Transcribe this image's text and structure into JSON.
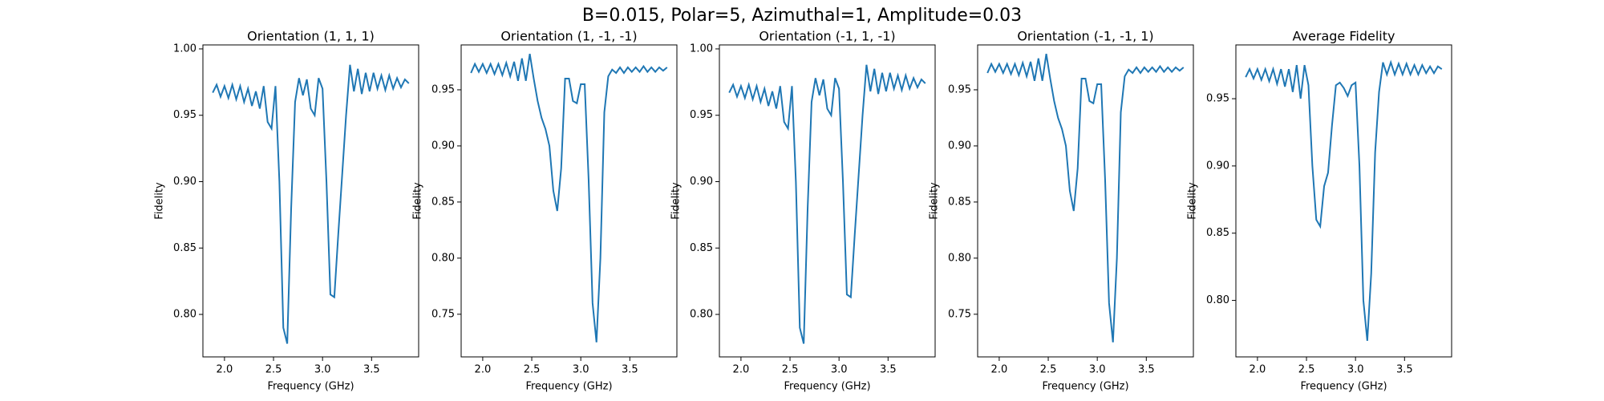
{
  "title": "B=0.015, Polar=5, Azimuthal=1, Amplitude=0.03",
  "chart_data": [
    {
      "type": "line",
      "title": "Orientation (1, 1, 1)",
      "xlabel": "Frequency (GHz)",
      "ylabel": "Fidelity",
      "color": "#1f77b4",
      "x": [
        1.88,
        1.92,
        1.96,
        2.0,
        2.04,
        2.08,
        2.12,
        2.16,
        2.2,
        2.24,
        2.28,
        2.32,
        2.36,
        2.4,
        2.44,
        2.48,
        2.52,
        2.56,
        2.6,
        2.64,
        2.68,
        2.72,
        2.76,
        2.8,
        2.84,
        2.88,
        2.92,
        2.96,
        3.0,
        3.04,
        3.08,
        3.12,
        3.16,
        3.2,
        3.24,
        3.28,
        3.32,
        3.36,
        3.4,
        3.44,
        3.48,
        3.52,
        3.56,
        3.6,
        3.64,
        3.68,
        3.72,
        3.76,
        3.8,
        3.84,
        3.88
      ],
      "values": [
        0.967,
        0.973,
        0.964,
        0.972,
        0.963,
        0.973,
        0.962,
        0.972,
        0.96,
        0.97,
        0.957,
        0.968,
        0.955,
        0.972,
        0.945,
        0.94,
        0.972,
        0.9,
        0.79,
        0.778,
        0.88,
        0.96,
        0.978,
        0.965,
        0.977,
        0.955,
        0.95,
        0.978,
        0.97,
        0.9,
        0.815,
        0.813,
        0.86,
        0.905,
        0.95,
        0.988,
        0.968,
        0.985,
        0.966,
        0.982,
        0.968,
        0.982,
        0.97,
        0.98,
        0.969,
        0.98,
        0.97,
        0.978,
        0.971,
        0.977,
        0.974
      ],
      "xlim": [
        1.78,
        3.98
      ],
      "ylim": [
        0.768,
        1.003
      ],
      "xticks": [
        {
          "value": 2,
          "label": "2.0"
        },
        2.5,
        {
          "value": 3,
          "label": "3.0"
        },
        3.5
      ],
      "yticks": [
        {
          "value": 0.8,
          "label": "0.80"
        },
        0.85,
        {
          "value": 0.9,
          "label": "0.90"
        },
        0.95,
        {
          "value": 1,
          "label": "1.00"
        }
      ]
    },
    {
      "type": "line",
      "title": "Orientation (1, -1, -1)",
      "xlabel": "Frequency (GHz)",
      "ylabel": "Fidelity",
      "color": "#1f77b4",
      "x": [
        1.88,
        1.92,
        1.96,
        2.0,
        2.04,
        2.08,
        2.12,
        2.16,
        2.2,
        2.24,
        2.28,
        2.32,
        2.36,
        2.4,
        2.44,
        2.48,
        2.52,
        2.56,
        2.6,
        2.64,
        2.68,
        2.72,
        2.76,
        2.8,
        2.84,
        2.88,
        2.92,
        2.96,
        3.0,
        3.04,
        3.08,
        3.12,
        3.16,
        3.2,
        3.24,
        3.28,
        3.32,
        3.36,
        3.4,
        3.44,
        3.48,
        3.52,
        3.56,
        3.6,
        3.64,
        3.68,
        3.72,
        3.76,
        3.8,
        3.84,
        3.88
      ],
      "values": [
        0.965,
        0.973,
        0.966,
        0.973,
        0.965,
        0.973,
        0.964,
        0.973,
        0.963,
        0.974,
        0.962,
        0.975,
        0.958,
        0.978,
        0.958,
        0.982,
        0.96,
        0.94,
        0.925,
        0.915,
        0.9,
        0.86,
        0.842,
        0.88,
        0.96,
        0.96,
        0.94,
        0.938,
        0.955,
        0.955,
        0.87,
        0.76,
        0.725,
        0.8,
        0.93,
        0.962,
        0.968,
        0.965,
        0.97,
        0.965,
        0.97,
        0.966,
        0.97,
        0.966,
        0.971,
        0.966,
        0.97,
        0.966,
        0.97,
        0.967,
        0.97
      ],
      "xlim": [
        1.78,
        3.98
      ],
      "ylim": [
        0.712,
        0.99
      ],
      "xticks": [
        {
          "value": 2,
          "label": "2.0"
        },
        2.5,
        {
          "value": 3,
          "label": "3.0"
        },
        3.5
      ],
      "yticks": [
        0.75,
        {
          "value": 0.8,
          "label": "0.80"
        },
        0.85,
        {
          "value": 0.9,
          "label": "0.90"
        },
        0.95
      ]
    },
    {
      "type": "line",
      "title": "Orientation (-1, 1, -1)",
      "xlabel": "Frequency (GHz)",
      "ylabel": "Fidelity",
      "color": "#1f77b4",
      "x": [
        1.88,
        1.92,
        1.96,
        2.0,
        2.04,
        2.08,
        2.12,
        2.16,
        2.2,
        2.24,
        2.28,
        2.32,
        2.36,
        2.4,
        2.44,
        2.48,
        2.52,
        2.56,
        2.6,
        2.64,
        2.68,
        2.72,
        2.76,
        2.8,
        2.84,
        2.88,
        2.92,
        2.96,
        3.0,
        3.04,
        3.08,
        3.12,
        3.16,
        3.2,
        3.24,
        3.28,
        3.32,
        3.36,
        3.4,
        3.44,
        3.48,
        3.52,
        3.56,
        3.6,
        3.64,
        3.68,
        3.72,
        3.76,
        3.8,
        3.84,
        3.88
      ],
      "values": [
        0.967,
        0.973,
        0.964,
        0.972,
        0.963,
        0.973,
        0.962,
        0.972,
        0.96,
        0.97,
        0.957,
        0.968,
        0.955,
        0.972,
        0.945,
        0.94,
        0.972,
        0.9,
        0.79,
        0.778,
        0.88,
        0.96,
        0.978,
        0.965,
        0.977,
        0.955,
        0.95,
        0.978,
        0.97,
        0.9,
        0.815,
        0.813,
        0.86,
        0.905,
        0.95,
        0.988,
        0.968,
        0.985,
        0.966,
        0.982,
        0.968,
        0.982,
        0.97,
        0.98,
        0.969,
        0.98,
        0.97,
        0.978,
        0.971,
        0.977,
        0.974
      ],
      "xlim": [
        1.78,
        3.98
      ],
      "ylim": [
        0.768,
        1.003
      ],
      "xticks": [
        {
          "value": 2,
          "label": "2.0"
        },
        2.5,
        {
          "value": 3,
          "label": "3.0"
        },
        3.5
      ],
      "yticks": [
        {
          "value": 0.8,
          "label": "0.80"
        },
        0.85,
        {
          "value": 0.9,
          "label": "0.90"
        },
        0.95,
        {
          "value": 1,
          "label": "1.00"
        }
      ]
    },
    {
      "type": "line",
      "title": "Orientation (-1, -1, 1)",
      "xlabel": "Frequency (GHz)",
      "ylabel": "Fidelity",
      "color": "#1f77b4",
      "x": [
        1.88,
        1.92,
        1.96,
        2.0,
        2.04,
        2.08,
        2.12,
        2.16,
        2.2,
        2.24,
        2.28,
        2.32,
        2.36,
        2.4,
        2.44,
        2.48,
        2.52,
        2.56,
        2.6,
        2.64,
        2.68,
        2.72,
        2.76,
        2.8,
        2.84,
        2.88,
        2.92,
        2.96,
        3.0,
        3.04,
        3.08,
        3.12,
        3.16,
        3.2,
        3.24,
        3.28,
        3.32,
        3.36,
        3.4,
        3.44,
        3.48,
        3.52,
        3.56,
        3.6,
        3.64,
        3.68,
        3.72,
        3.76,
        3.8,
        3.84,
        3.88
      ],
      "values": [
        0.965,
        0.973,
        0.966,
        0.973,
        0.965,
        0.973,
        0.964,
        0.973,
        0.963,
        0.974,
        0.962,
        0.975,
        0.958,
        0.978,
        0.958,
        0.982,
        0.96,
        0.94,
        0.925,
        0.915,
        0.9,
        0.86,
        0.842,
        0.88,
        0.96,
        0.96,
        0.94,
        0.938,
        0.955,
        0.955,
        0.87,
        0.76,
        0.725,
        0.8,
        0.93,
        0.962,
        0.968,
        0.965,
        0.97,
        0.965,
        0.97,
        0.966,
        0.97,
        0.966,
        0.971,
        0.966,
        0.97,
        0.966,
        0.97,
        0.967,
        0.97
      ],
      "xlim": [
        1.78,
        3.98
      ],
      "ylim": [
        0.712,
        0.99
      ],
      "xticks": [
        {
          "value": 2,
          "label": "2.0"
        },
        2.5,
        {
          "value": 3,
          "label": "3.0"
        },
        3.5
      ],
      "yticks": [
        0.75,
        {
          "value": 0.8,
          "label": "0.80"
        },
        0.85,
        {
          "value": 0.9,
          "label": "0.90"
        },
        0.95
      ]
    },
    {
      "type": "line",
      "title": "Average Fidelity",
      "xlabel": "Frequency (GHz)",
      "ylabel": "Fidelity",
      "color": "#1f77b4",
      "x": [
        1.88,
        1.92,
        1.96,
        2.0,
        2.04,
        2.08,
        2.12,
        2.16,
        2.2,
        2.24,
        2.28,
        2.32,
        2.36,
        2.4,
        2.44,
        2.48,
        2.52,
        2.56,
        2.6,
        2.64,
        2.68,
        2.72,
        2.76,
        2.8,
        2.84,
        2.88,
        2.92,
        2.96,
        3.0,
        3.04,
        3.08,
        3.12,
        3.16,
        3.2,
        3.24,
        3.28,
        3.32,
        3.36,
        3.4,
        3.44,
        3.48,
        3.52,
        3.56,
        3.6,
        3.64,
        3.68,
        3.72,
        3.76,
        3.8,
        3.84,
        3.88
      ],
      "values": [
        0.966,
        0.972,
        0.965,
        0.972,
        0.964,
        0.972,
        0.963,
        0.972,
        0.961,
        0.972,
        0.959,
        0.972,
        0.955,
        0.975,
        0.95,
        0.975,
        0.96,
        0.9,
        0.86,
        0.855,
        0.885,
        0.895,
        0.93,
        0.96,
        0.962,
        0.958,
        0.952,
        0.96,
        0.962,
        0.9,
        0.8,
        0.77,
        0.82,
        0.91,
        0.955,
        0.977,
        0.968,
        0.977,
        0.968,
        0.976,
        0.968,
        0.976,
        0.968,
        0.975,
        0.968,
        0.975,
        0.969,
        0.974,
        0.969,
        0.974,
        0.972
      ],
      "xlim": [
        1.78,
        3.98
      ],
      "ylim": [
        0.758,
        0.99
      ],
      "xticks": [
        {
          "value": 2,
          "label": "2.0"
        },
        2.5,
        {
          "value": 3,
          "label": "3.0"
        },
        3.5
      ],
      "yticks": [
        {
          "value": 0.8,
          "label": "0.80"
        },
        0.85,
        {
          "value": 0.9,
          "label": "0.90"
        },
        0.95
      ]
    }
  ]
}
